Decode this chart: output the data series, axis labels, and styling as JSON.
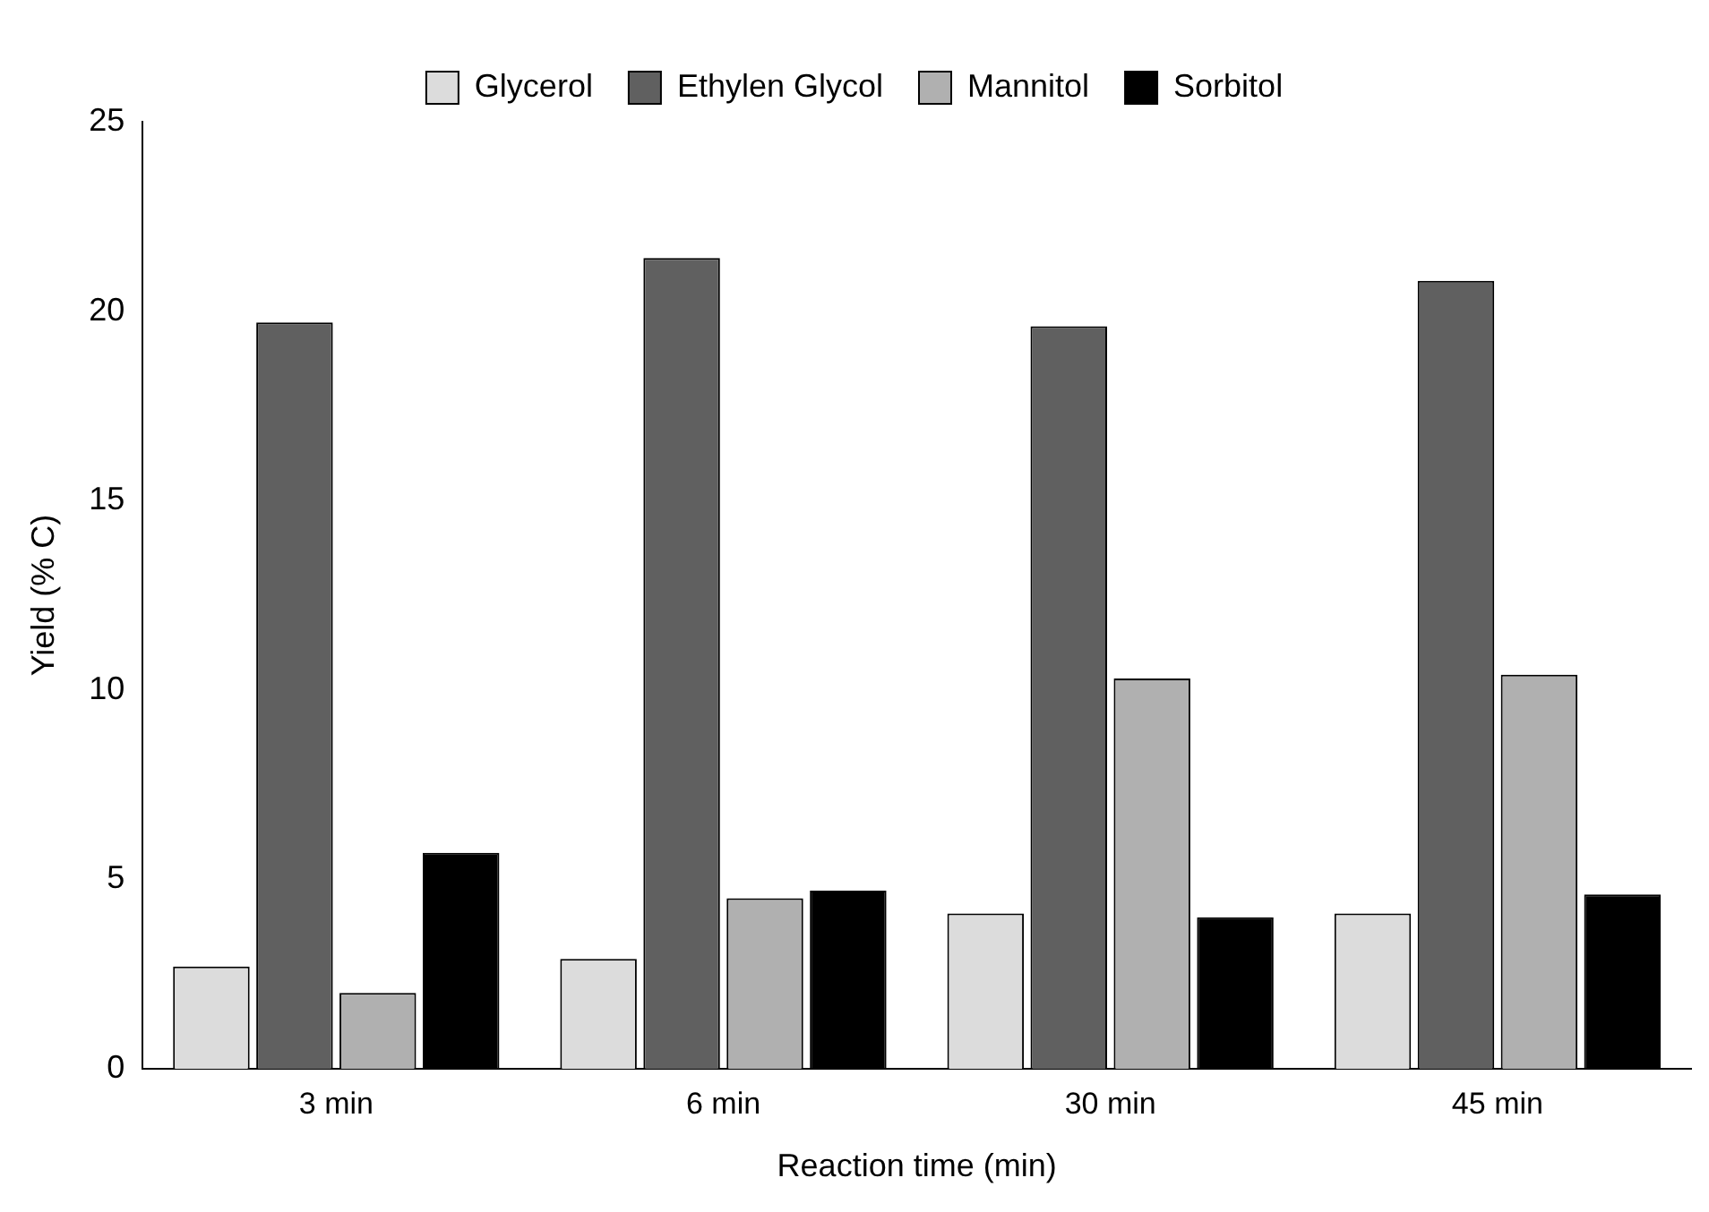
{
  "chart_data": {
    "type": "bar",
    "xlabel": "Reaction time (min)",
    "ylabel": "Yield (% C)",
    "categories": [
      "3 min",
      "6 min",
      "30 min",
      "45 min"
    ],
    "series": [
      {
        "name": "Glycerol",
        "color": "#dcdcdc",
        "values": [
          2.7,
          2.9,
          4.1,
          4.1
        ]
      },
      {
        "name": "Ethylen Glycol",
        "color": "#606060",
        "values": [
          19.7,
          21.4,
          19.6,
          20.8
        ]
      },
      {
        "name": "Mannitol",
        "color": "#b0b0b0",
        "values": [
          2.0,
          4.5,
          10.3,
          10.4
        ]
      },
      {
        "name": "Sorbitol",
        "color": "#000000",
        "values": [
          5.7,
          4.7,
          4.0,
          4.6
        ]
      }
    ],
    "ylim": [
      0,
      25
    ],
    "yticks": [
      0,
      5,
      10,
      15,
      20,
      25
    ],
    "grid": false,
    "legend": "top"
  }
}
